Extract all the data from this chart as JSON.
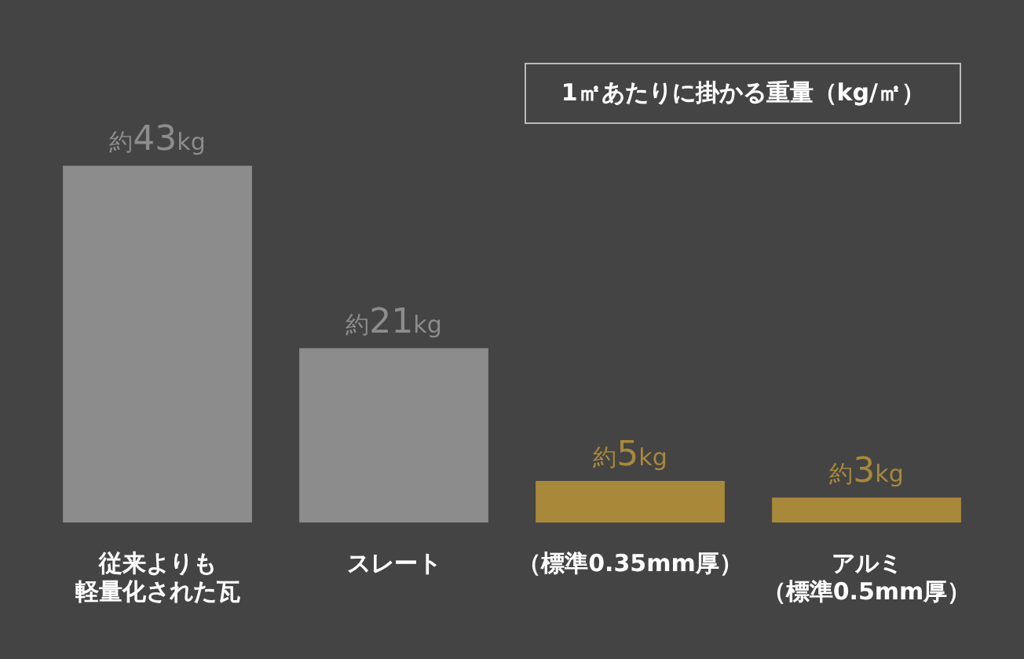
{
  "chart_data": {
    "type": "bar",
    "title": "1㎡あたりに掛かる重量（kg/㎡）",
    "categories": [
      "従来よりも軽量化された瓦",
      "スレート",
      "（標準0.35mm厚）",
      "アルミ（標準0.5mm厚）"
    ],
    "values": [
      43,
      21,
      5,
      3
    ],
    "colors": [
      "#8c8c8c",
      "#8c8c8c",
      "#a8893a",
      "#a8893a"
    ],
    "value_labels": [
      "約43kg",
      "約21kg",
      "約5kg",
      "約3kg"
    ],
    "grid": false,
    "legend": false
  }
}
